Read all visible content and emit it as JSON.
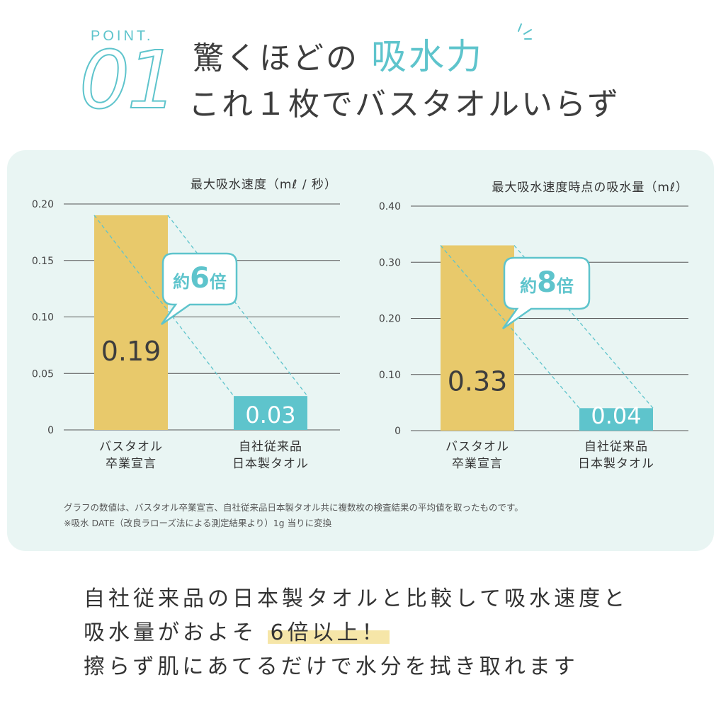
{
  "header": {
    "point_label": "POINT.",
    "point_number": "01",
    "headline_line1_pre": "驚くほどの",
    "headline_line1_accent": "吸水力",
    "headline_line2": "これ１枚でバスタオルいらず"
  },
  "colors": {
    "accent": "#5ec4cc",
    "product_bar": "#e8c96b",
    "comparison_bar": "#5ec4cc",
    "panel_bg": "#e9f5f3",
    "highlight": "#f6e6a8"
  },
  "chart_data": [
    {
      "type": "bar",
      "title": "最大吸水速度（mℓ / 秒）",
      "categories": [
        [
          "バスタオル",
          "卒業宣言"
        ],
        [
          "自社従来品",
          "日本製タオル"
        ]
      ],
      "values": [
        0.19,
        0.03
      ],
      "value_labels": [
        "0.19",
        "0.03"
      ],
      "yticks": [
        0,
        0.05,
        0.1,
        0.15,
        0.2
      ],
      "ytick_labels": [
        "0",
        "0.05",
        "0.10",
        "0.15",
        "0.20"
      ],
      "ylim": [
        0,
        0.2
      ],
      "grid": true,
      "callout": {
        "pre": "約",
        "num": "6",
        "post": "倍"
      }
    },
    {
      "type": "bar",
      "title": "最大吸水速度時点の吸水量（mℓ）",
      "categories": [
        [
          "バスタオル",
          "卒業宣言"
        ],
        [
          "自社従来品",
          "日本製タオル"
        ]
      ],
      "values": [
        0.33,
        0.04
      ],
      "value_labels": [
        "0.33",
        "0.04"
      ],
      "yticks": [
        0,
        0.1,
        0.2,
        0.3,
        0.4
      ],
      "ytick_labels": [
        "0",
        "0.10",
        "0.20",
        "0.30",
        "0.40"
      ],
      "ylim": [
        0,
        0.4
      ],
      "grid": true,
      "callout": {
        "pre": "約",
        "num": "8",
        "post": "倍"
      }
    }
  ],
  "footnotes": [
    "グラフの数値は、バスタオル卒業宣言、自社従来品日本製タオル共に複数枚の検査結果の平均値を取ったものです。",
    "※吸水 DATE（改良ラローズ法による測定結果より）1g 当りに変換"
  ],
  "body": {
    "line1": "自社従来品の日本製タオルと比較して吸水速度と",
    "line2_pre": "吸水量がおよそ",
    "line2_highlight": "6倍以上！",
    "line3": "擦らず肌にあてるだけで水分を拭き取れます"
  }
}
